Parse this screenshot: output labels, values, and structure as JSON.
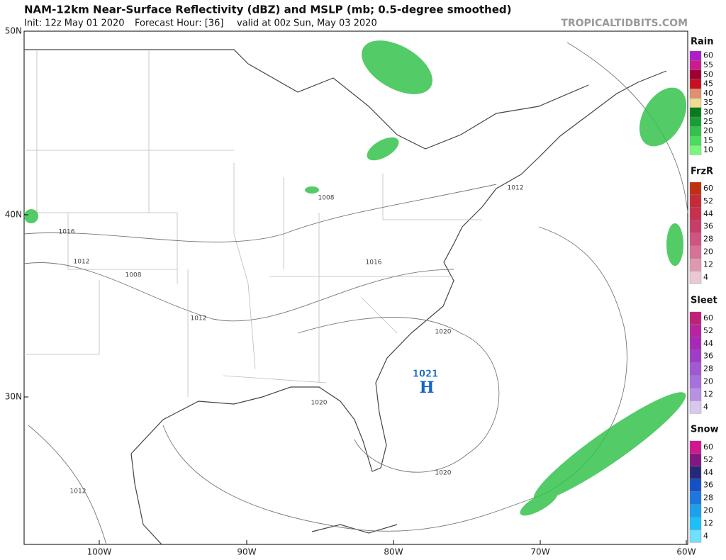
{
  "header": {
    "title": "NAM-12km Near-Surface Reflectivity (dBZ) and MSLP (mb; 0.5-degree smoothed)",
    "init": "Init: 12z May 01 2020",
    "forecast_hour": "Forecast Hour: [36]",
    "valid": "valid at 00z Sun, May 03 2020",
    "credit": "TROPICALTIDBITS.COM"
  },
  "map": {
    "lat_labels": [
      "50N",
      "40N",
      "30N"
    ],
    "lon_labels": [
      "100W",
      "90W",
      "80W",
      "70W",
      "60W"
    ],
    "isobar_labels": [
      "1016",
      "1012",
      "1008",
      "1012",
      "1008",
      "1016",
      "1020",
      "1020",
      "1020",
      "1012",
      "1012"
    ],
    "high": {
      "pressure": "1021",
      "label": "H"
    }
  },
  "legend": [
    {
      "title": "Rain",
      "levels": [
        "60",
        "55",
        "50",
        "45",
        "40",
        "35",
        "30",
        "25",
        "20",
        "15",
        "10"
      ],
      "colors": [
        "#b01cc8",
        "#d01890",
        "#a00030",
        "#c81020",
        "#e09070",
        "#f0dc90",
        "#0a7a1e",
        "#1a9e34",
        "#34c24c",
        "#4cdc5c",
        "#78f878"
      ]
    },
    {
      "title": "FrzR",
      "levels": [
        "60",
        "52",
        "44",
        "36",
        "28",
        "20",
        "12",
        "4"
      ],
      "colors": [
        "#c03010",
        "#c82838",
        "#c83050",
        "#c83c68",
        "#d05480",
        "#d87098",
        "#e098b0",
        "#ecc8d4"
      ]
    },
    {
      "title": "Sleet",
      "levels": [
        "60",
        "52",
        "44",
        "36",
        "28",
        "20",
        "12",
        "4"
      ],
      "colors": [
        "#c02078",
        "#b824a0",
        "#a828b8",
        "#a03cc8",
        "#a058d4",
        "#a870dc",
        "#b890e4",
        "#d8c8f0"
      ]
    },
    {
      "title": "Snow",
      "levels": [
        "60",
        "52",
        "44",
        "36",
        "28",
        "20",
        "12",
        "4"
      ],
      "colors": [
        "#d01890",
        "#801880",
        "#282878",
        "#1450c8",
        "#1c78e0",
        "#1ca0f0",
        "#1cc0f8",
        "#70e0fc"
      ]
    }
  ]
}
